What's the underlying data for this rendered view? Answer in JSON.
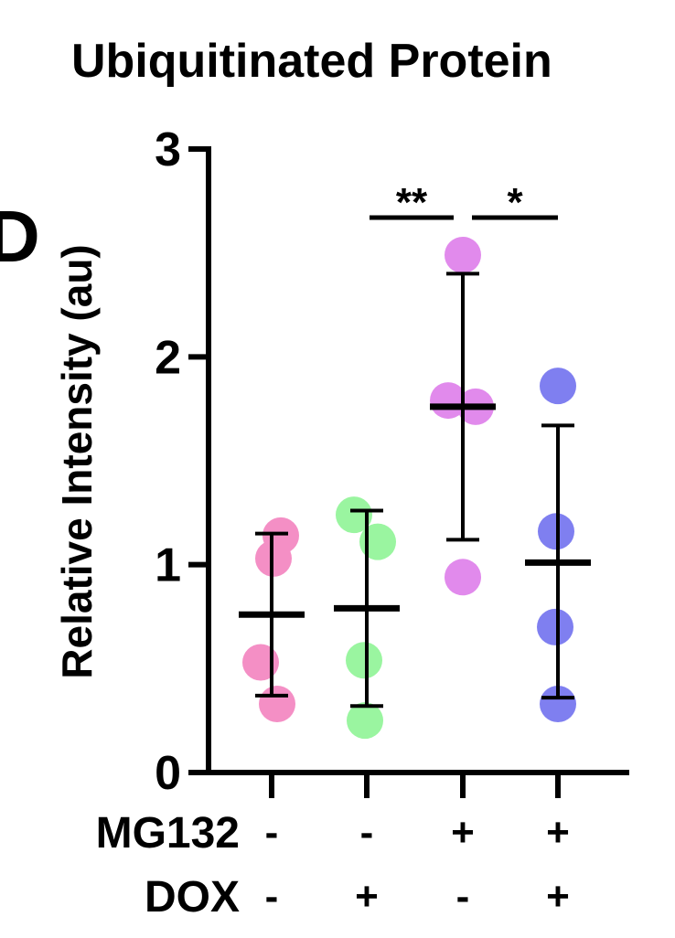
{
  "panel_letter": "D",
  "chart_data": {
    "type": "scatter",
    "title": "Ubiquitinated Protein",
    "ylabel": "Relative Intensity (au)",
    "ylim": [
      0,
      3
    ],
    "yticks": [
      "0",
      "1",
      "2",
      "3"
    ],
    "condition_rows": [
      {
        "label": "MG132",
        "values": [
          "-",
          "-",
          "+",
          "+"
        ]
      },
      {
        "label": "DOX",
        "values": [
          "-",
          "+",
          "-",
          "+"
        ]
      }
    ],
    "groups": [
      {
        "color": "#f48fc5",
        "points": [
          1.14,
          1.03,
          0.53,
          0.33
        ],
        "mean": 0.76,
        "err_low": 0.37,
        "err_high": 1.15
      },
      {
        "color": "#9af5a0",
        "points": [
          1.24,
          1.11,
          0.54,
          0.25
        ],
        "mean": 0.79,
        "err_low": 0.32,
        "err_high": 1.26
      },
      {
        "color": "#e18aec",
        "points": [
          2.49,
          1.79,
          1.76,
          0.94
        ],
        "mean": 1.76,
        "err_low": 1.12,
        "err_high": 2.4
      },
      {
        "color": "#7f7ff0",
        "points": [
          1.86,
          1.16,
          0.7,
          0.33
        ],
        "mean": 1.01,
        "err_low": 0.36,
        "err_high": 1.67
      }
    ],
    "significance": [
      {
        "from": 0,
        "to": 2,
        "label": "**",
        "y": 2.67
      },
      {
        "from": 2,
        "to": 3,
        "label": "*",
        "y": 2.67
      }
    ],
    "grid": false
  }
}
